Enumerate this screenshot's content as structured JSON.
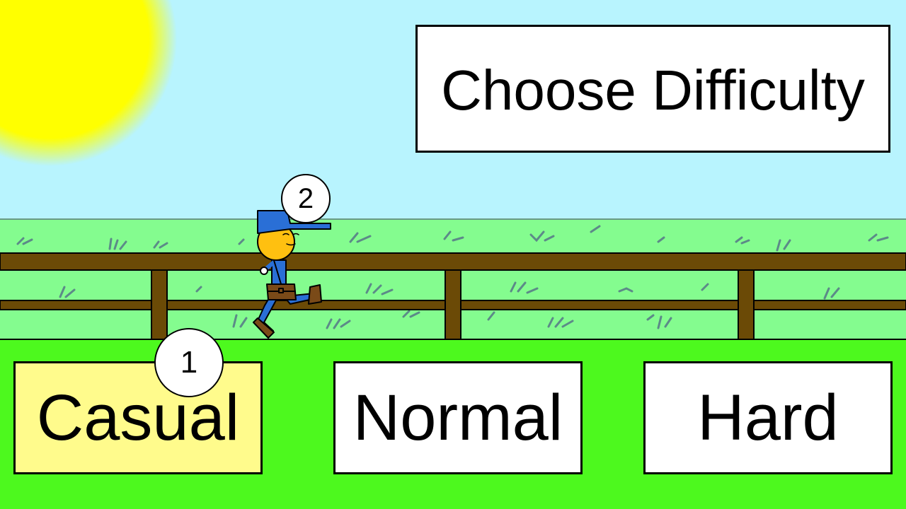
{
  "title": "Choose Difficulty",
  "difficulty_buttons": [
    {
      "label": "Casual",
      "selected": true
    },
    {
      "label": "Normal",
      "selected": false
    },
    {
      "label": "Hard",
      "selected": false
    }
  ],
  "markers": [
    "1",
    "2"
  ],
  "colors": {
    "sky": "#b8f4fe",
    "sun": "#ffff00",
    "back_grass": "#84fc8f",
    "ground": "#4df91e",
    "fence": "#6b4a06",
    "selected_button": "#fffb8c",
    "button": "#ffffff",
    "character_shirt": "#2a6fd6",
    "character_face": "#ffc010",
    "bag": "#7a4a18"
  },
  "icons": [
    "sun-icon",
    "character-icon",
    "grass-tuft-icon",
    "fence-icon"
  ]
}
